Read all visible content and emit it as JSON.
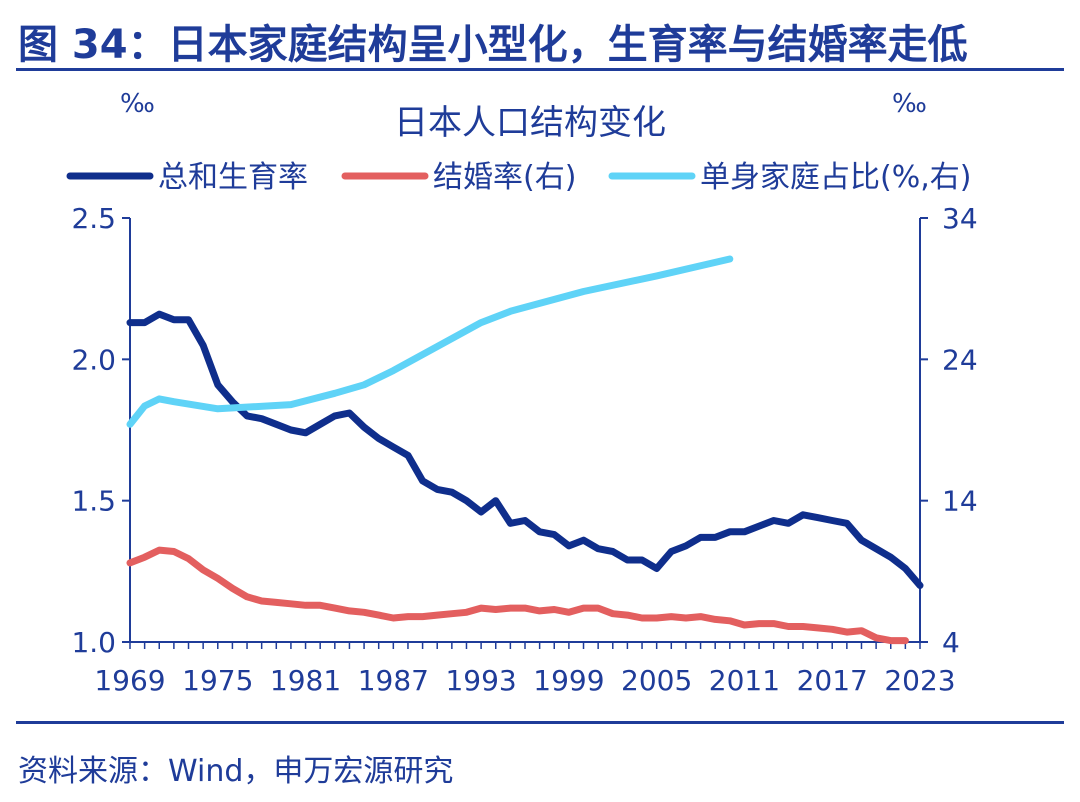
{
  "figure_title": "图 34：日本家庭结构呈小型化，生育率与结婚率走低",
  "source": "资料来源：Wind，申万宏源研究",
  "colors": {
    "title": "#1f3c99",
    "axis": "#1f3c99",
    "fertility": "#0f2e8c",
    "marriage": "#e35f5f",
    "single": "#5fd3f7"
  },
  "chart_data": {
    "type": "line",
    "title": "日本人口结构变化",
    "left_unit": "‰",
    "right_unit": "‰",
    "x_ticks": [
      "1969",
      "1975",
      "1981",
      "1987",
      "1993",
      "1999",
      "2005",
      "2011",
      "2017",
      "2023"
    ],
    "xlim": [
      1969,
      2023
    ],
    "y_left": {
      "ticks": [
        "2.5",
        "2.0",
        "1.5",
        "1.0"
      ],
      "range": [
        1.0,
        2.5
      ]
    },
    "y_right": {
      "ticks": [
        "34",
        "24",
        "14",
        "4"
      ],
      "range": [
        4,
        34
      ]
    },
    "legend": [
      {
        "name": "总和生育率",
        "color": "#0f2e8c"
      },
      {
        "name": "结婚率(右)",
        "color": "#e35f5f"
      },
      {
        "name": "单身家庭占比(%,右)",
        "color": "#5fd3f7"
      }
    ],
    "series": [
      {
        "name": "总和生育率",
        "axis": "left",
        "x": [
          1969,
          1970,
          1971,
          1972,
          1973,
          1974,
          1975,
          1976,
          1977,
          1978,
          1979,
          1980,
          1981,
          1982,
          1983,
          1984,
          1985,
          1986,
          1987,
          1988,
          1989,
          1990,
          1991,
          1992,
          1993,
          1994,
          1995,
          1996,
          1997,
          1998,
          1999,
          2000,
          2001,
          2002,
          2003,
          2004,
          2005,
          2006,
          2007,
          2008,
          2009,
          2010,
          2011,
          2012,
          2013,
          2014,
          2015,
          2016,
          2017,
          2018,
          2019,
          2020,
          2021,
          2022,
          2023
        ],
        "y": [
          2.13,
          2.13,
          2.16,
          2.14,
          2.14,
          2.05,
          1.91,
          1.85,
          1.8,
          1.79,
          1.77,
          1.75,
          1.74,
          1.77,
          1.8,
          1.81,
          1.76,
          1.72,
          1.69,
          1.66,
          1.57,
          1.54,
          1.53,
          1.5,
          1.46,
          1.5,
          1.42,
          1.43,
          1.39,
          1.38,
          1.34,
          1.36,
          1.33,
          1.32,
          1.29,
          1.29,
          1.26,
          1.32,
          1.34,
          1.37,
          1.37,
          1.39,
          1.39,
          1.41,
          1.43,
          1.42,
          1.45,
          1.44,
          1.43,
          1.42,
          1.36,
          1.33,
          1.3,
          1.26,
          1.2
        ]
      },
      {
        "name": "结婚率(右)",
        "axis": "right",
        "x": [
          1969,
          1970,
          1971,
          1972,
          1973,
          1974,
          1975,
          1976,
          1977,
          1978,
          1979,
          1980,
          1981,
          1982,
          1983,
          1984,
          1985,
          1986,
          1987,
          1988,
          1989,
          1990,
          1991,
          1992,
          1993,
          1994,
          1995,
          1996,
          1997,
          1998,
          1999,
          2000,
          2001,
          2002,
          2003,
          2004,
          2005,
          2006,
          2007,
          2008,
          2009,
          2010,
          2011,
          2012,
          2013,
          2014,
          2015,
          2016,
          2017,
          2018,
          2019,
          2020,
          2021,
          2022,
          2023
        ],
        "y": [
          9.6,
          10.0,
          10.5,
          10.4,
          9.9,
          9.1,
          8.5,
          7.8,
          7.2,
          6.9,
          6.8,
          6.7,
          6.6,
          6.6,
          6.4,
          6.2,
          6.1,
          5.9,
          5.7,
          5.8,
          5.8,
          5.9,
          6.0,
          6.1,
          6.4,
          6.3,
          6.4,
          6.4,
          6.2,
          6.3,
          6.1,
          6.4,
          6.4,
          6.0,
          5.9,
          5.7,
          5.7,
          5.8,
          5.7,
          5.8,
          5.6,
          5.5,
          5.2,
          5.3,
          5.3,
          5.1,
          5.1,
          5.0,
          4.9,
          4.7,
          4.8,
          4.3,
          4.1,
          4.1,
          null
        ]
      },
      {
        "name": "单身家庭占比(%,右)",
        "axis": "right",
        "x": [
          1969,
          1970,
          1971,
          1972,
          1975,
          1980,
          1983,
          1985,
          1987,
          1990,
          1993,
          1995,
          2000,
          2005,
          2010
        ],
        "y": [
          19.4,
          20.7,
          21.2,
          21.0,
          20.5,
          20.8,
          21.6,
          22.2,
          23.2,
          24.9,
          26.6,
          27.4,
          28.8,
          29.9,
          31.1
        ]
      }
    ]
  }
}
